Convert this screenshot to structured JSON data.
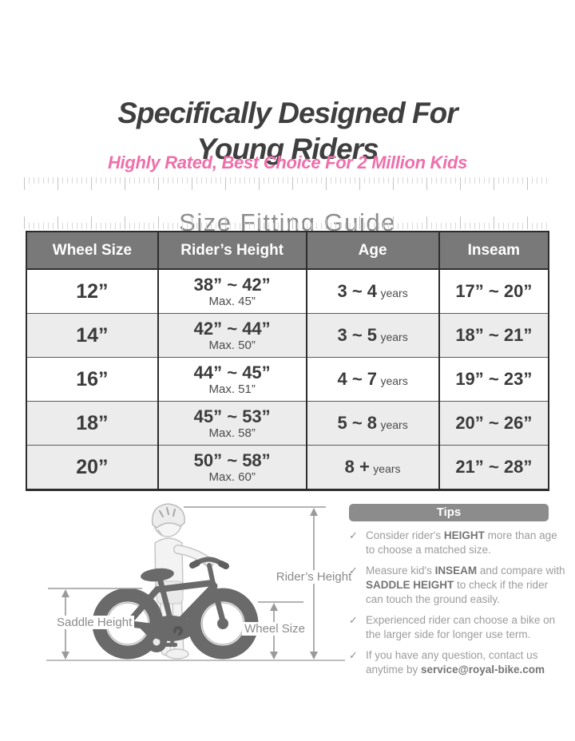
{
  "page": {
    "title_line1": "Specifically Designed For",
    "title_line2": "Young Riders",
    "subtitle": "Highly Rated, Best Choice For 2 Million Kids",
    "section_title": "Size Fitting Guide"
  },
  "size_table": {
    "columns": [
      "Wheel Size",
      "Rider’s Height",
      "Age",
      "Inseam"
    ],
    "rows": [
      {
        "wheel_size": "12”",
        "rider_height": "38” ~ 42”",
        "rider_height_max": "Max. 45”",
        "age": "3 ~ 4",
        "age_unit": "years",
        "inseam": "17” ~ 20”",
        "shaded": false
      },
      {
        "wheel_size": "14”",
        "rider_height": "42” ~ 44”",
        "rider_height_max": "Max. 50”",
        "age": "3 ~ 5",
        "age_unit": "years",
        "inseam": "18” ~ 21”",
        "shaded": true
      },
      {
        "wheel_size": "16”",
        "rider_height": "44” ~ 45”",
        "rider_height_max": "Max. 51”",
        "age": "4 ~ 7",
        "age_unit": "years",
        "inseam": "19” ~ 23”",
        "shaded": false
      },
      {
        "wheel_size": "18”",
        "rider_height": "45” ~ 53”",
        "rider_height_max": "Max. 58”",
        "age": "5 ~ 8",
        "age_unit": "years",
        "inseam": "20” ~ 26”",
        "shaded": true
      },
      {
        "wheel_size": "20”",
        "rider_height": "50” ~ 58”",
        "rider_height_max": "Max. 60”",
        "age": "8 +",
        "age_unit": "years",
        "inseam": "21” ~ 28”",
        "shaded": true
      }
    ]
  },
  "diagram": {
    "riders_height_label": "Rider’s Height",
    "saddle_height_label": "Saddle Height",
    "wheel_size_label": "Wheel Size"
  },
  "tips": {
    "title": "Tips",
    "check_icon": "✓",
    "items": [
      {
        "parts": [
          {
            "text": "Consider rider's "
          },
          {
            "text": "HEIGHT",
            "bold": true
          },
          {
            "text": " more than age to choose a matched size."
          }
        ]
      },
      {
        "parts": [
          {
            "text": "Measure kid's "
          },
          {
            "text": "INSEAM",
            "bold": true
          },
          {
            "text": " and compare with "
          },
          {
            "text": "SADDLE HEIGHT",
            "bold": true
          },
          {
            "text": " to check if the rider can touch the ground easily."
          }
        ]
      },
      {
        "parts": [
          {
            "text": "Experienced rider can choose a bike on the larger side for longer use term."
          }
        ]
      },
      {
        "parts": [
          {
            "text": "If you have any question, contact us anytime by "
          },
          {
            "text": "service@royal-bike.com",
            "bold": true
          }
        ]
      }
    ]
  },
  "colors": {
    "title_text": "#3f3f3f",
    "accent_pink": "#ef6fab",
    "section_gray": "#8c8c8c",
    "table_header_bg": "#797979",
    "table_header_text": "#ffffff",
    "row_shade": "#ececec",
    "tips_header_bg": "#8c8c8c",
    "tips_text": "#9c9c9c",
    "bike_dark": "#6a6a6a",
    "kid_light": "#f3f3f3",
    "arrow_gray": "#9a9a9a"
  }
}
